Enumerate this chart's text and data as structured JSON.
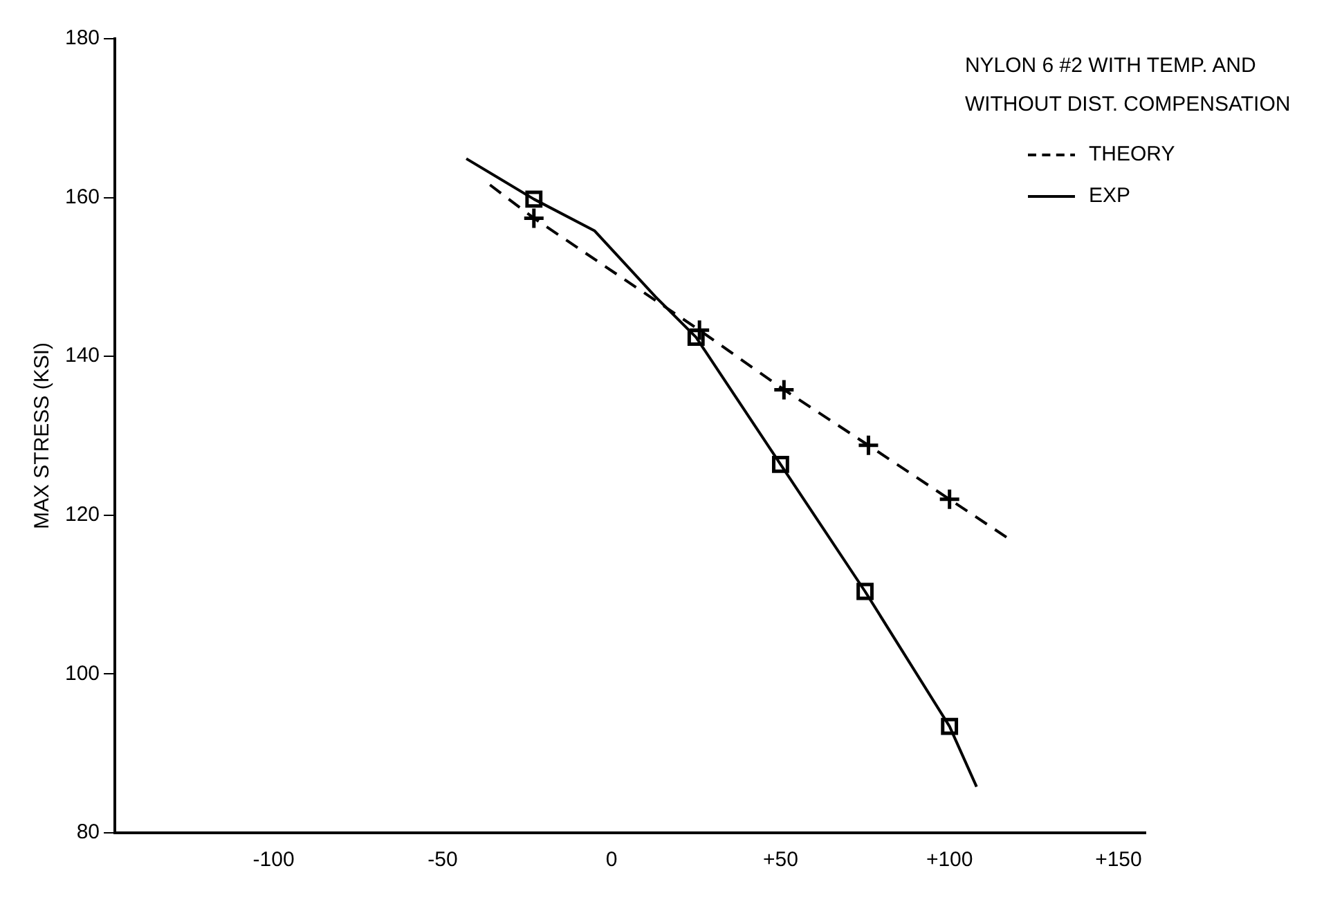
{
  "chart_data": {
    "type": "line",
    "title": "NYLON 6 #2 WITH TEMP. AND WITHOUT DIST. COMPENSATION",
    "ylabel": "MAX STRESS (KSI)",
    "xlim": [
      -147,
      158
    ],
    "xticks": [
      {
        "value": -100,
        "label": "-100"
      },
      {
        "value": -50,
        "label": "-50"
      },
      0,
      {
        "value": 50,
        "label": "+50"
      },
      {
        "value": 100,
        "label": "+100"
      },
      {
        "value": 150,
        "label": "+150"
      }
    ],
    "ylim": [
      80,
      180
    ],
    "yticks": [
      80,
      100,
      120,
      140,
      160,
      180
    ],
    "grid": false,
    "legend": "top right",
    "series": [
      {
        "name": "THEORY",
        "color": "#000000",
        "line_style": "dashed",
        "marker": "none",
        "x": [
          -36,
          -23,
          26,
          51,
          76,
          100,
          118
        ],
        "values": [
          161.6,
          157.4,
          143.3,
          135.8,
          128.8,
          122,
          116.9
        ]
      },
      {
        "type": "scatter",
        "color": "#000000",
        "marker": "cross",
        "x": [
          -23,
          26,
          51,
          76,
          100
        ],
        "values": [
          157.4,
          143.3,
          135.8,
          128.8,
          122
        ]
      },
      {
        "name": "EXP",
        "color": "#000000",
        "line_style": "solid",
        "marker": "none",
        "x": [
          -43,
          -23,
          -5,
          13,
          25,
          50,
          75,
          100,
          108
        ],
        "values": [
          164.9,
          159.8,
          155.8,
          147.5,
          142.4,
          126.4,
          110.4,
          93.4,
          85.8
        ]
      },
      {
        "type": "scatter",
        "color": "#000000",
        "marker": "square",
        "x": [
          -23,
          25,
          50,
          75,
          100
        ],
        "values": [
          159.8,
          142.4,
          126.4,
          110.4,
          93.4
        ]
      }
    ]
  }
}
